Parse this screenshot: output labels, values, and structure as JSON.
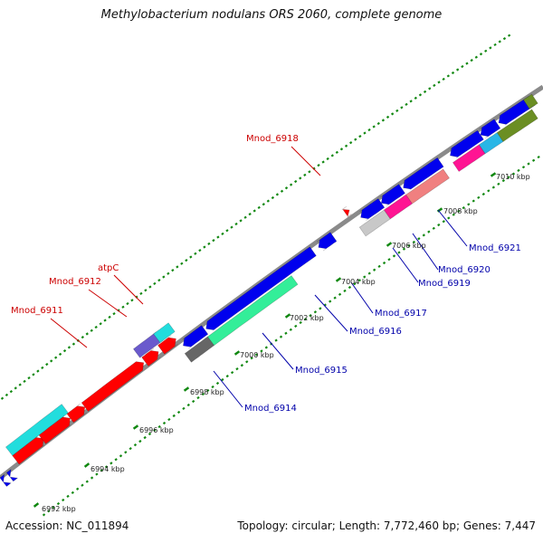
{
  "title": "Methylobacterium nodulans ORS 2060, complete genome",
  "footer": {
    "accession": "Accession: NC_011894",
    "summary": "Topology: circular; Length: 7,772,460 bp; Genes: 7,447"
  },
  "colors": {
    "backbone": "#8a8a8a",
    "tick": "#118811",
    "label_top_strand": "#cc0000",
    "label_bottom_strand": "#0000aa"
  },
  "ticks_kbp": [
    {
      "label": "6992 kbp"
    },
    {
      "label": "6994 kbp"
    },
    {
      "label": "6996 kbp"
    },
    {
      "label": "6998 kbp"
    },
    {
      "label": "7000 kbp"
    },
    {
      "label": "7002 kbp"
    },
    {
      "label": "7004 kbp"
    },
    {
      "label": "7006 kbp"
    },
    {
      "label": "7008 kbp"
    },
    {
      "label": "7010 kbp"
    }
  ],
  "gene_labels_top": [
    {
      "label": "Mnod_6911"
    },
    {
      "label": "Mnod_6912"
    },
    {
      "label": "atpC"
    },
    {
      "label": "Mnod_6918"
    }
  ],
  "gene_labels_bottom": [
    {
      "label": "Mnod_6914"
    },
    {
      "label": "Mnod_6915"
    },
    {
      "label": "Mnod_6916"
    },
    {
      "label": "Mnod_6917"
    },
    {
      "label": "Mnod_6919"
    },
    {
      "label": "Mnod_6920"
    },
    {
      "label": "Mnod_6921"
    }
  ],
  "feature_colors": {
    "cds_plus": "#ff0000",
    "cds_minus": "#0000ee",
    "cyan": "#22dddd",
    "purple": "#6a5acd",
    "aquamarine": "#33ee99",
    "gray": "#666666",
    "lightgray": "#c8c8c8",
    "magenta": "#ff1493",
    "salmon": "#f08080",
    "olive": "#6b8e23",
    "sky": "#29b6e6"
  }
}
